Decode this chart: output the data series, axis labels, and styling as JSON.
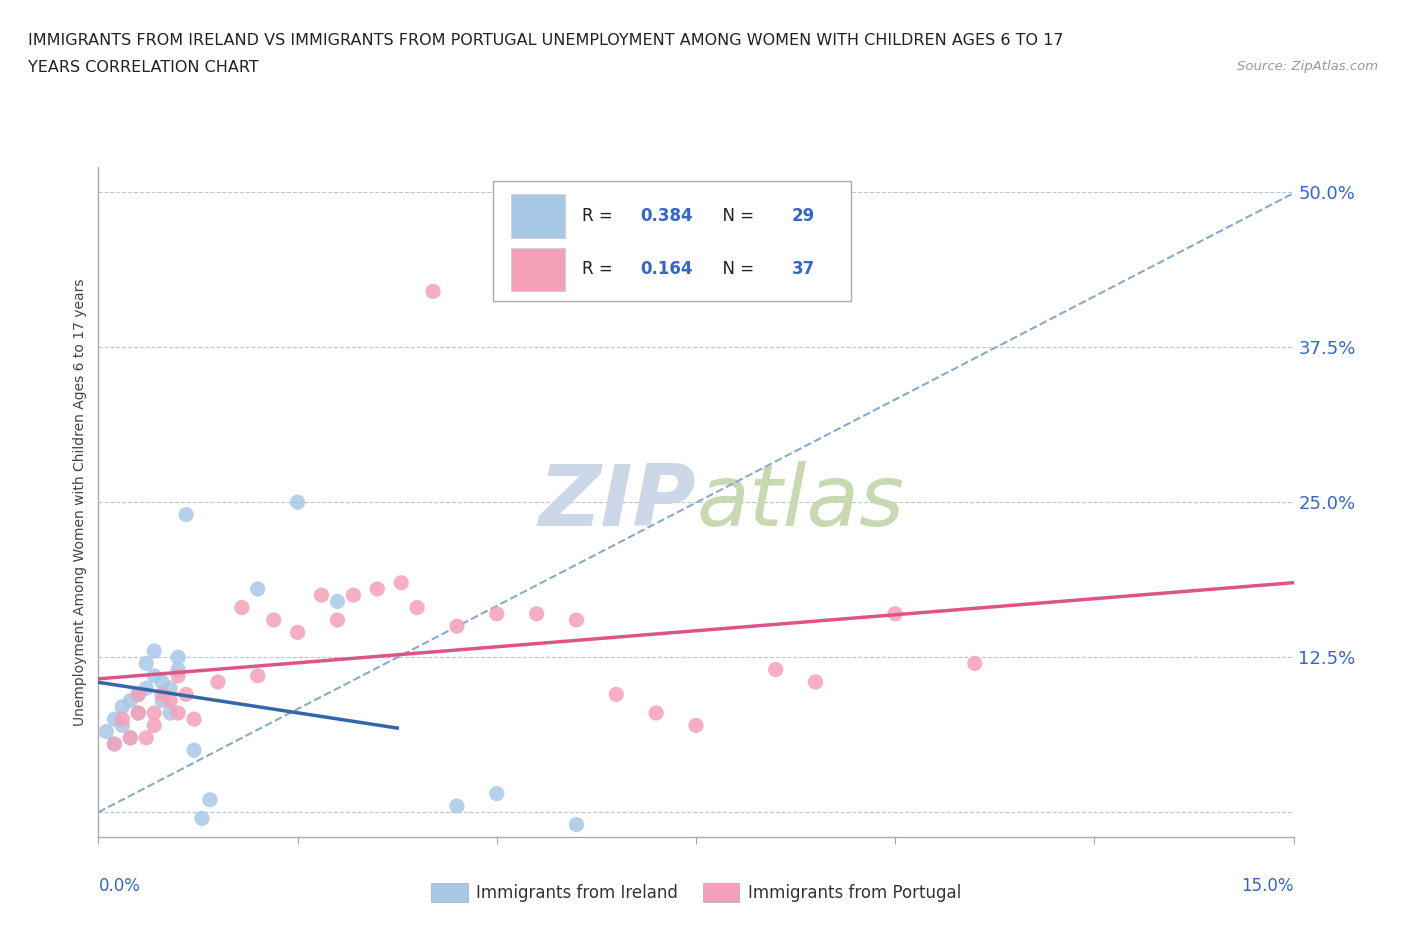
{
  "title_line1": "IMMIGRANTS FROM IRELAND VS IMMIGRANTS FROM PORTUGAL UNEMPLOYMENT AMONG WOMEN WITH CHILDREN AGES 6 TO 17",
  "title_line2": "YEARS CORRELATION CHART",
  "source": "Source: ZipAtlas.com",
  "ylabel": "Unemployment Among Women with Children Ages 6 to 17 years",
  "xmin": 0.0,
  "xmax": 0.15,
  "ymin": -0.02,
  "ymax": 0.52,
  "ireland_R": 0.384,
  "ireland_N": 29,
  "portugal_R": 0.164,
  "portugal_N": 37,
  "ireland_color": "#a8c8e8",
  "portugal_color": "#f4a0b8",
  "ireland_line_color": "#3366aa",
  "portugal_line_color": "#dd5588",
  "diagonal_color": "#88aacc",
  "legend_text_color": "#3366cc",
  "watermark_color": "#ccd8e8",
  "ireland_x": [
    0.001,
    0.002,
    0.002,
    0.003,
    0.003,
    0.004,
    0.004,
    0.005,
    0.005,
    0.006,
    0.006,
    0.007,
    0.007,
    0.008,
    0.008,
    0.009,
    0.009,
    0.01,
    0.01,
    0.011,
    0.012,
    0.013,
    0.014,
    0.02,
    0.025,
    0.03,
    0.045,
    0.05,
    0.06
  ],
  "ireland_y": [
    0.065,
    0.055,
    0.075,
    0.07,
    0.085,
    0.06,
    0.09,
    0.08,
    0.095,
    0.1,
    0.12,
    0.11,
    0.13,
    0.09,
    0.105,
    0.08,
    0.1,
    0.115,
    0.125,
    0.24,
    0.05,
    -0.005,
    0.01,
    0.18,
    0.25,
    0.17,
    0.005,
    0.015,
    -0.01
  ],
  "portugal_x": [
    0.002,
    0.003,
    0.004,
    0.005,
    0.005,
    0.006,
    0.007,
    0.007,
    0.008,
    0.009,
    0.01,
    0.01,
    0.011,
    0.012,
    0.015,
    0.018,
    0.02,
    0.022,
    0.025,
    0.028,
    0.03,
    0.032,
    0.035,
    0.038,
    0.04,
    0.042,
    0.045,
    0.05,
    0.055,
    0.06,
    0.065,
    0.07,
    0.075,
    0.085,
    0.09,
    0.1,
    0.11
  ],
  "portugal_y": [
    0.055,
    0.075,
    0.06,
    0.08,
    0.095,
    0.06,
    0.07,
    0.08,
    0.095,
    0.09,
    0.08,
    0.11,
    0.095,
    0.075,
    0.105,
    0.165,
    0.11,
    0.155,
    0.145,
    0.175,
    0.155,
    0.175,
    0.18,
    0.185,
    0.165,
    0.42,
    0.15,
    0.16,
    0.16,
    0.155,
    0.095,
    0.08,
    0.07,
    0.115,
    0.105,
    0.16,
    0.12
  ],
  "right_ytick_vals": [
    0.0,
    0.125,
    0.25,
    0.375,
    0.5
  ],
  "right_ytick_labels": [
    "",
    "12.5%",
    "25.0%",
    "37.5%",
    "50.0%"
  ]
}
